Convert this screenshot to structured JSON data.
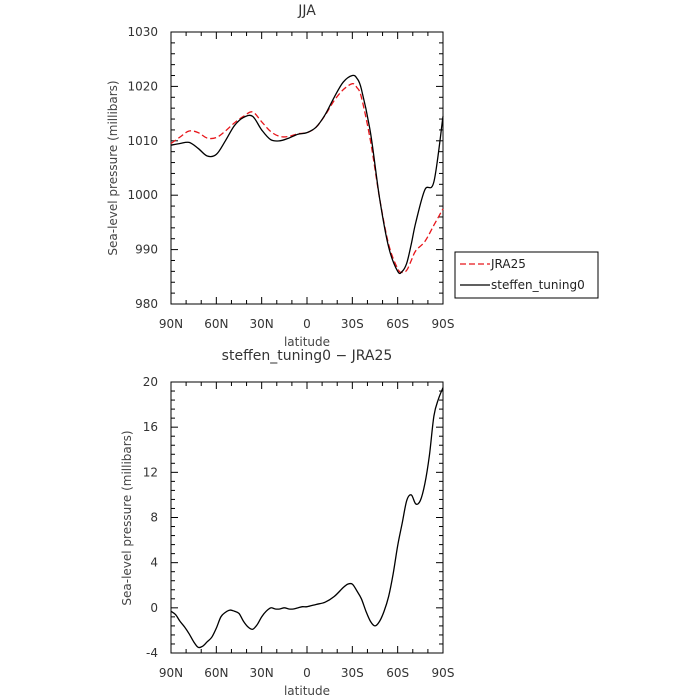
{
  "chart_data": [
    {
      "type": "line",
      "title": "JJA",
      "xlabel": "latitude",
      "ylabel": "Sea-level pressure (millibars)",
      "xlim": [
        90,
        -90
      ],
      "ylim": [
        980,
        1030
      ],
      "xticks": [
        {
          "value": 90,
          "label": "90N"
        },
        {
          "value": 60,
          "label": "60N"
        },
        {
          "value": 30,
          "label": "30N"
        },
        {
          "value": 0,
          "label": "0"
        },
        {
          "value": -30,
          "label": "30S"
        },
        {
          "value": -60,
          "label": "60S"
        },
        {
          "value": -90,
          "label": "90S"
        }
      ],
      "yticks": [
        980,
        990,
        1000,
        1010,
        1020,
        1030
      ],
      "legend_position": "right",
      "series": [
        {
          "name": "JRA25",
          "color": "#e8161b",
          "dash": "dashed",
          "x": [
            90,
            84,
            78,
            72,
            66,
            60,
            54,
            48,
            42,
            36,
            30,
            24,
            18,
            12,
            6,
            0,
            -6,
            -12,
            -18,
            -24,
            -30,
            -33,
            -36,
            -42,
            -48,
            -54,
            -60,
            -63,
            -66,
            -69,
            -72,
            -78,
            -84,
            -90
          ],
          "y": [
            1009.5,
            1010.7,
            1011.8,
            1011.5,
            1010.5,
            1010.6,
            1011.8,
            1013.3,
            1014.5,
            1015.3,
            1013.5,
            1011.7,
            1010.8,
            1010.8,
            1011.3,
            1011.5,
            1012.5,
            1014.7,
            1017.4,
            1019.4,
            1020.5,
            1019.8,
            1018.0,
            1010.0,
            999.5,
            991.0,
            986.5,
            985.8,
            986.2,
            988.0,
            989.8,
            991.5,
            994.5,
            997.5
          ]
        },
        {
          "name": "steffen_tuning0",
          "color": "#000000",
          "dash": "solid",
          "x": [
            90,
            84,
            78,
            72,
            66,
            60,
            54,
            48,
            42,
            36,
            30,
            24,
            18,
            12,
            6,
            0,
            -6,
            -12,
            -18,
            -24,
            -30,
            -33,
            -36,
            -42,
            -48,
            -54,
            -60,
            -63,
            -66,
            -69,
            -72,
            -78,
            -84,
            -90
          ],
          "y": [
            1009.2,
            1009.5,
            1009.7,
            1008.6,
            1007.2,
            1007.5,
            1010.0,
            1012.8,
            1014.3,
            1014.5,
            1012.0,
            1010.2,
            1010.0,
            1010.5,
            1011.2,
            1011.5,
            1012.5,
            1014.8,
            1018.0,
            1020.8,
            1022.0,
            1021.5,
            1019.5,
            1011.5,
            999.5,
            990.5,
            986.0,
            986.0,
            987.5,
            991.0,
            995.0,
            1001.0,
            1002.5,
            1014.5
          ]
        }
      ]
    },
    {
      "type": "line",
      "title": "steffen_tuning0 − JRA25",
      "xlabel": "latitude",
      "ylabel": "Sea-level pressure (millibars)",
      "xlim": [
        90,
        -90
      ],
      "ylim": [
        -4,
        20
      ],
      "xticks": [
        {
          "value": 90,
          "label": "90N"
        },
        {
          "value": 60,
          "label": "60N"
        },
        {
          "value": 30,
          "label": "30N"
        },
        {
          "value": 0,
          "label": "0"
        },
        {
          "value": -30,
          "label": "30S"
        },
        {
          "value": -60,
          "label": "60S"
        },
        {
          "value": -90,
          "label": "90S"
        }
      ],
      "yticks": [
        -4,
        0,
        4,
        8,
        12,
        16,
        20
      ],
      "series": [
        {
          "name": "",
          "color": "#000000",
          "dash": "solid",
          "x": [
            90,
            87,
            84,
            81,
            78,
            75,
            72,
            69,
            66,
            63,
            60,
            57,
            54,
            51,
            48,
            45,
            42,
            39,
            36,
            33,
            30,
            27,
            24,
            21,
            18,
            15,
            12,
            9,
            6,
            3,
            0,
            -6,
            -12,
            -18,
            -24,
            -27,
            -30,
            -33,
            -36,
            -39,
            -42,
            -45,
            -48,
            -51,
            -54,
            -57,
            -60,
            -63,
            -66,
            -69,
            -72,
            -75,
            -78,
            -81,
            -84,
            -87,
            -90
          ],
          "y": [
            -0.3,
            -0.6,
            -1.2,
            -1.7,
            -2.3,
            -3.0,
            -3.5,
            -3.4,
            -3.0,
            -2.6,
            -1.8,
            -0.8,
            -0.4,
            -0.2,
            -0.3,
            -0.5,
            -1.2,
            -1.7,
            -1.9,
            -1.5,
            -0.8,
            -0.3,
            0.0,
            -0.1,
            -0.1,
            0.0,
            -0.1,
            -0.1,
            0.0,
            0.1,
            0.1,
            0.3,
            0.5,
            1.0,
            1.8,
            2.1,
            2.1,
            1.5,
            0.8,
            -0.3,
            -1.2,
            -1.6,
            -1.2,
            -0.3,
            1.0,
            3.0,
            5.5,
            7.5,
            9.5,
            10.0,
            9.2,
            9.5,
            11.0,
            13.5,
            17.0,
            18.5,
            19.5
          ]
        }
      ]
    }
  ]
}
